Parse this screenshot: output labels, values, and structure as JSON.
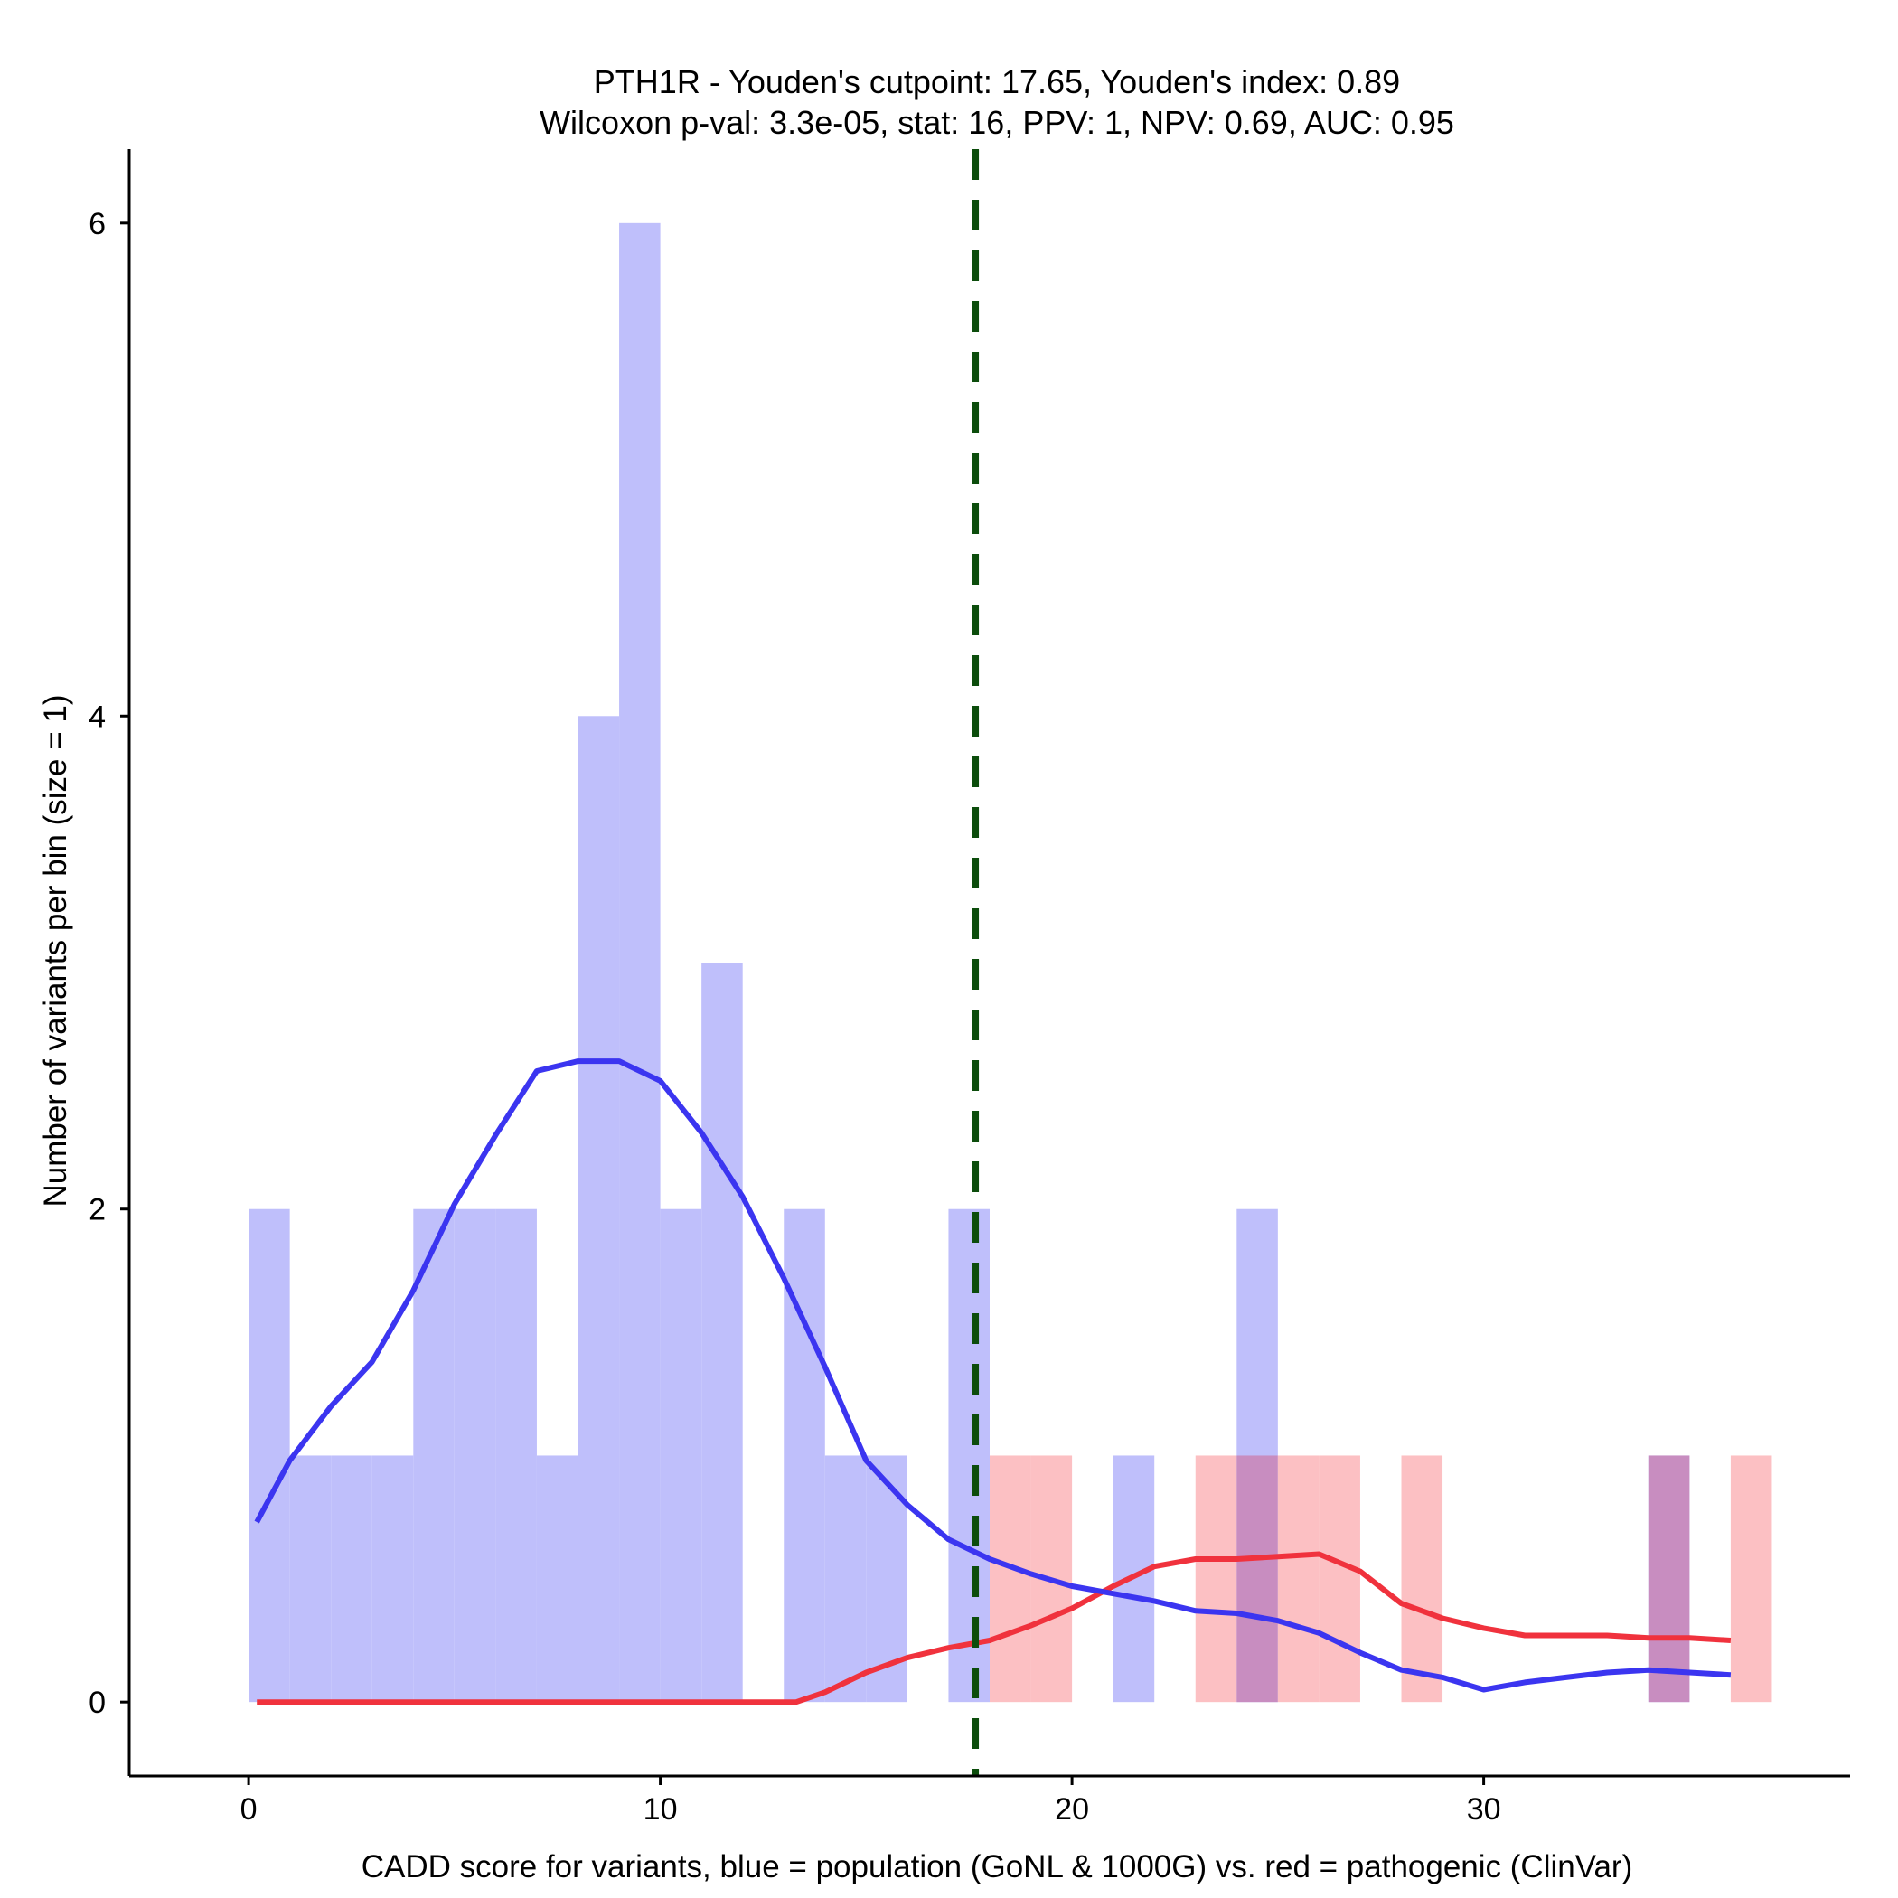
{
  "chart_data": {
    "type": "bar",
    "title": "PTH1R - Youden's cutpoint: 17.65, Youden's index: 0.89",
    "subtitle": "Wilcoxon p-val: 3.3e-05, stat: 16, PPV: 1, NPV: 0.69, AUC: 0.95",
    "xlabel": "CADD score for variants, blue = population (GoNL & 1000G) vs. red = pathogenic (ClinVar)",
    "ylabel": "Number of variants per bin (size = 1)",
    "xlim": [
      -2.9,
      38.9
    ],
    "ylim": [
      -0.3,
      6.3
    ],
    "x_ticks": [
      0,
      10,
      20,
      30
    ],
    "y_ticks": [
      0,
      2,
      4,
      6
    ],
    "bin_width": 1,
    "cutpoint": 17.65,
    "colors": {
      "population": "#bfbffb",
      "pathogenic": "#fcc0c3",
      "overlap": "#c88dc0",
      "population_line": "#3b35f0",
      "pathogenic_line": "#f0323d",
      "cutpoint_line": "#0c4d0c"
    },
    "series": [
      {
        "name": "population",
        "bins": [
          {
            "start": 0,
            "count": 2
          },
          {
            "start": 1,
            "count": 1
          },
          {
            "start": 2,
            "count": 1
          },
          {
            "start": 3,
            "count": 1
          },
          {
            "start": 4,
            "count": 2
          },
          {
            "start": 5,
            "count": 2
          },
          {
            "start": 6,
            "count": 2
          },
          {
            "start": 7,
            "count": 1
          },
          {
            "start": 8,
            "count": 4
          },
          {
            "start": 9,
            "count": 6
          },
          {
            "start": 10,
            "count": 2
          },
          {
            "start": 11,
            "count": 3
          },
          {
            "start": 13,
            "count": 2
          },
          {
            "start": 14,
            "count": 1
          },
          {
            "start": 15,
            "count": 1
          },
          {
            "start": 17,
            "count": 2
          },
          {
            "start": 21,
            "count": 1
          },
          {
            "start": 24,
            "count": 2
          },
          {
            "start": 34,
            "count": 1
          }
        ],
        "density_curve": {
          "x": [
            0.2,
            1,
            2,
            3,
            4,
            5,
            6,
            7,
            8,
            8.5,
            9,
            10,
            11,
            12,
            13,
            14,
            15,
            16,
            17,
            18,
            19,
            20,
            21,
            22,
            23,
            24,
            25,
            26,
            27,
            28,
            29,
            30,
            31,
            32,
            33,
            34,
            35,
            36
          ],
          "y": [
            0.73,
            0.98,
            1.2,
            1.38,
            1.67,
            2.02,
            2.3,
            2.56,
            2.6,
            2.6,
            2.6,
            2.52,
            2.31,
            2.05,
            1.72,
            1.36,
            0.98,
            0.8,
            0.66,
            0.58,
            0.52,
            0.47,
            0.44,
            0.41,
            0.37,
            0.36,
            0.33,
            0.28,
            0.2,
            0.13,
            0.1,
            0.05,
            0.08,
            0.1,
            0.12,
            0.13,
            0.12,
            0.11
          ]
        }
      },
      {
        "name": "pathogenic",
        "bins": [
          {
            "start": 18,
            "count": 1
          },
          {
            "start": 19,
            "count": 1
          },
          {
            "start": 23,
            "count": 1
          },
          {
            "start": 24,
            "count": 1
          },
          {
            "start": 25,
            "count": 1
          },
          {
            "start": 26,
            "count": 1
          },
          {
            "start": 28,
            "count": 1
          },
          {
            "start": 34,
            "count": 1
          },
          {
            "start": 36,
            "count": 1
          }
        ],
        "density_curve": {
          "x": [
            0.2,
            2,
            4,
            6,
            8,
            10,
            12,
            13.3,
            14,
            15,
            16,
            17,
            18,
            19,
            20,
            21,
            22,
            23,
            24,
            25,
            26,
            27,
            28,
            29,
            30,
            31,
            32,
            33,
            34,
            35,
            36
          ],
          "y": [
            0,
            0,
            0,
            0,
            0,
            0,
            0,
            0,
            0.04,
            0.12,
            0.18,
            0.22,
            0.25,
            0.31,
            0.38,
            0.47,
            0.55,
            0.58,
            0.58,
            0.59,
            0.6,
            0.53,
            0.4,
            0.34,
            0.3,
            0.27,
            0.27,
            0.27,
            0.26,
            0.26,
            0.25
          ]
        }
      }
    ]
  }
}
